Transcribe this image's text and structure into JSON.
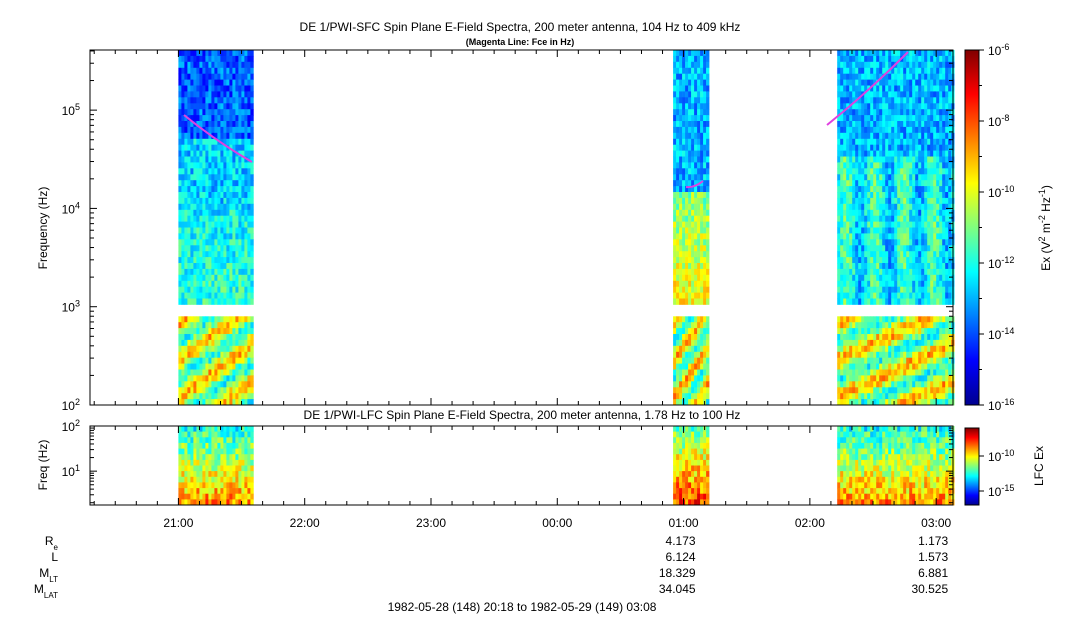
{
  "chart_data": [
    {
      "type": "heatmap",
      "title": "DE 1/PWI-SFC  Spin Plane E-Field Spectra, 200 meter antenna, 104 Hz to 409 kHz",
      "subtitle": "(Magenta Line: Fce in Hz)",
      "ylabel": "Frequency (Hz)",
      "y_scale": "log",
      "ylim": [
        100,
        409000
      ],
      "y_ticks": [
        {
          "value": 100,
          "base": "10",
          "exp": "2"
        },
        {
          "value": 1000,
          "base": "10",
          "exp": "3"
        },
        {
          "value": 10000,
          "base": "10",
          "exp": "4"
        },
        {
          "value": 100000,
          "base": "10",
          "exp": "5"
        }
      ],
      "colorbar": {
        "label_main": "Ex (V",
        "sup1": "2",
        "label_mid": " m",
        "sup2": "-2",
        "label_mid2": " Hz",
        "sup3": "-1",
        "label_end": ")",
        "scale": "log",
        "range": [
          1e-16,
          1e-06
        ],
        "ticks": [
          {
            "value": 1e-06,
            "base": "10",
            "exp": "-6"
          },
          {
            "value": 1e-08,
            "base": "10",
            "exp": "-8"
          },
          {
            "value": 1e-10,
            "base": "10",
            "exp": "-10"
          },
          {
            "value": 1e-12,
            "base": "10",
            "exp": "-12"
          },
          {
            "value": 1e-14,
            "base": "10",
            "exp": "-14"
          },
          {
            "value": 1e-16,
            "base": "10",
            "exp": "-16"
          }
        ]
      },
      "data_intervals": [
        "21:00-21:35",
        "00:55-01:12",
        "02:13-03:08"
      ],
      "fce_line_color": "#e040e0"
    },
    {
      "type": "heatmap",
      "title": "DE 1/PWI-LFC  Spin Plane E-Field Spectra, 200 meter antenna, 1.78 Hz to 100 Hz",
      "ylabel": "Freq (Hz)",
      "y_scale": "log",
      "ylim": [
        1.78,
        100
      ],
      "y_ticks": [
        {
          "value": 10,
          "base": "10",
          "exp": "1"
        },
        {
          "value": 100,
          "base": "10",
          "exp": "2"
        }
      ],
      "colorbar": {
        "label": "LFC Ex",
        "scale": "log",
        "ticks": [
          {
            "value": 1e-10,
            "base": "10",
            "exp": "-10"
          },
          {
            "value": 1e-15,
            "base": "10",
            "exp": "-15"
          }
        ]
      }
    }
  ],
  "time_axis": {
    "start": "20:18",
    "end": "03:08",
    "ticks": [
      "21:00",
      "22:00",
      "23:00",
      "00:00",
      "01:00",
      "02:00",
      "03:00"
    ],
    "range_label": "1982-05-28 (148) 20:18 to 1982-05-29 (149) 03:08"
  },
  "ephemeris": {
    "labels": [
      {
        "main": "R",
        "sub": "e"
      },
      {
        "main": "L",
        "sub": ""
      },
      {
        "main": "M",
        "sub": "LT"
      },
      {
        "main": "M",
        "sub": "LAT"
      }
    ],
    "columns": [
      {
        "tick": "01:00",
        "values": [
          "4.173",
          "6.124",
          "18.329",
          "34.045"
        ]
      },
      {
        "tick": "03:00",
        "values": [
          "1.173",
          "1.573",
          "6.881",
          "30.525"
        ]
      }
    ]
  }
}
